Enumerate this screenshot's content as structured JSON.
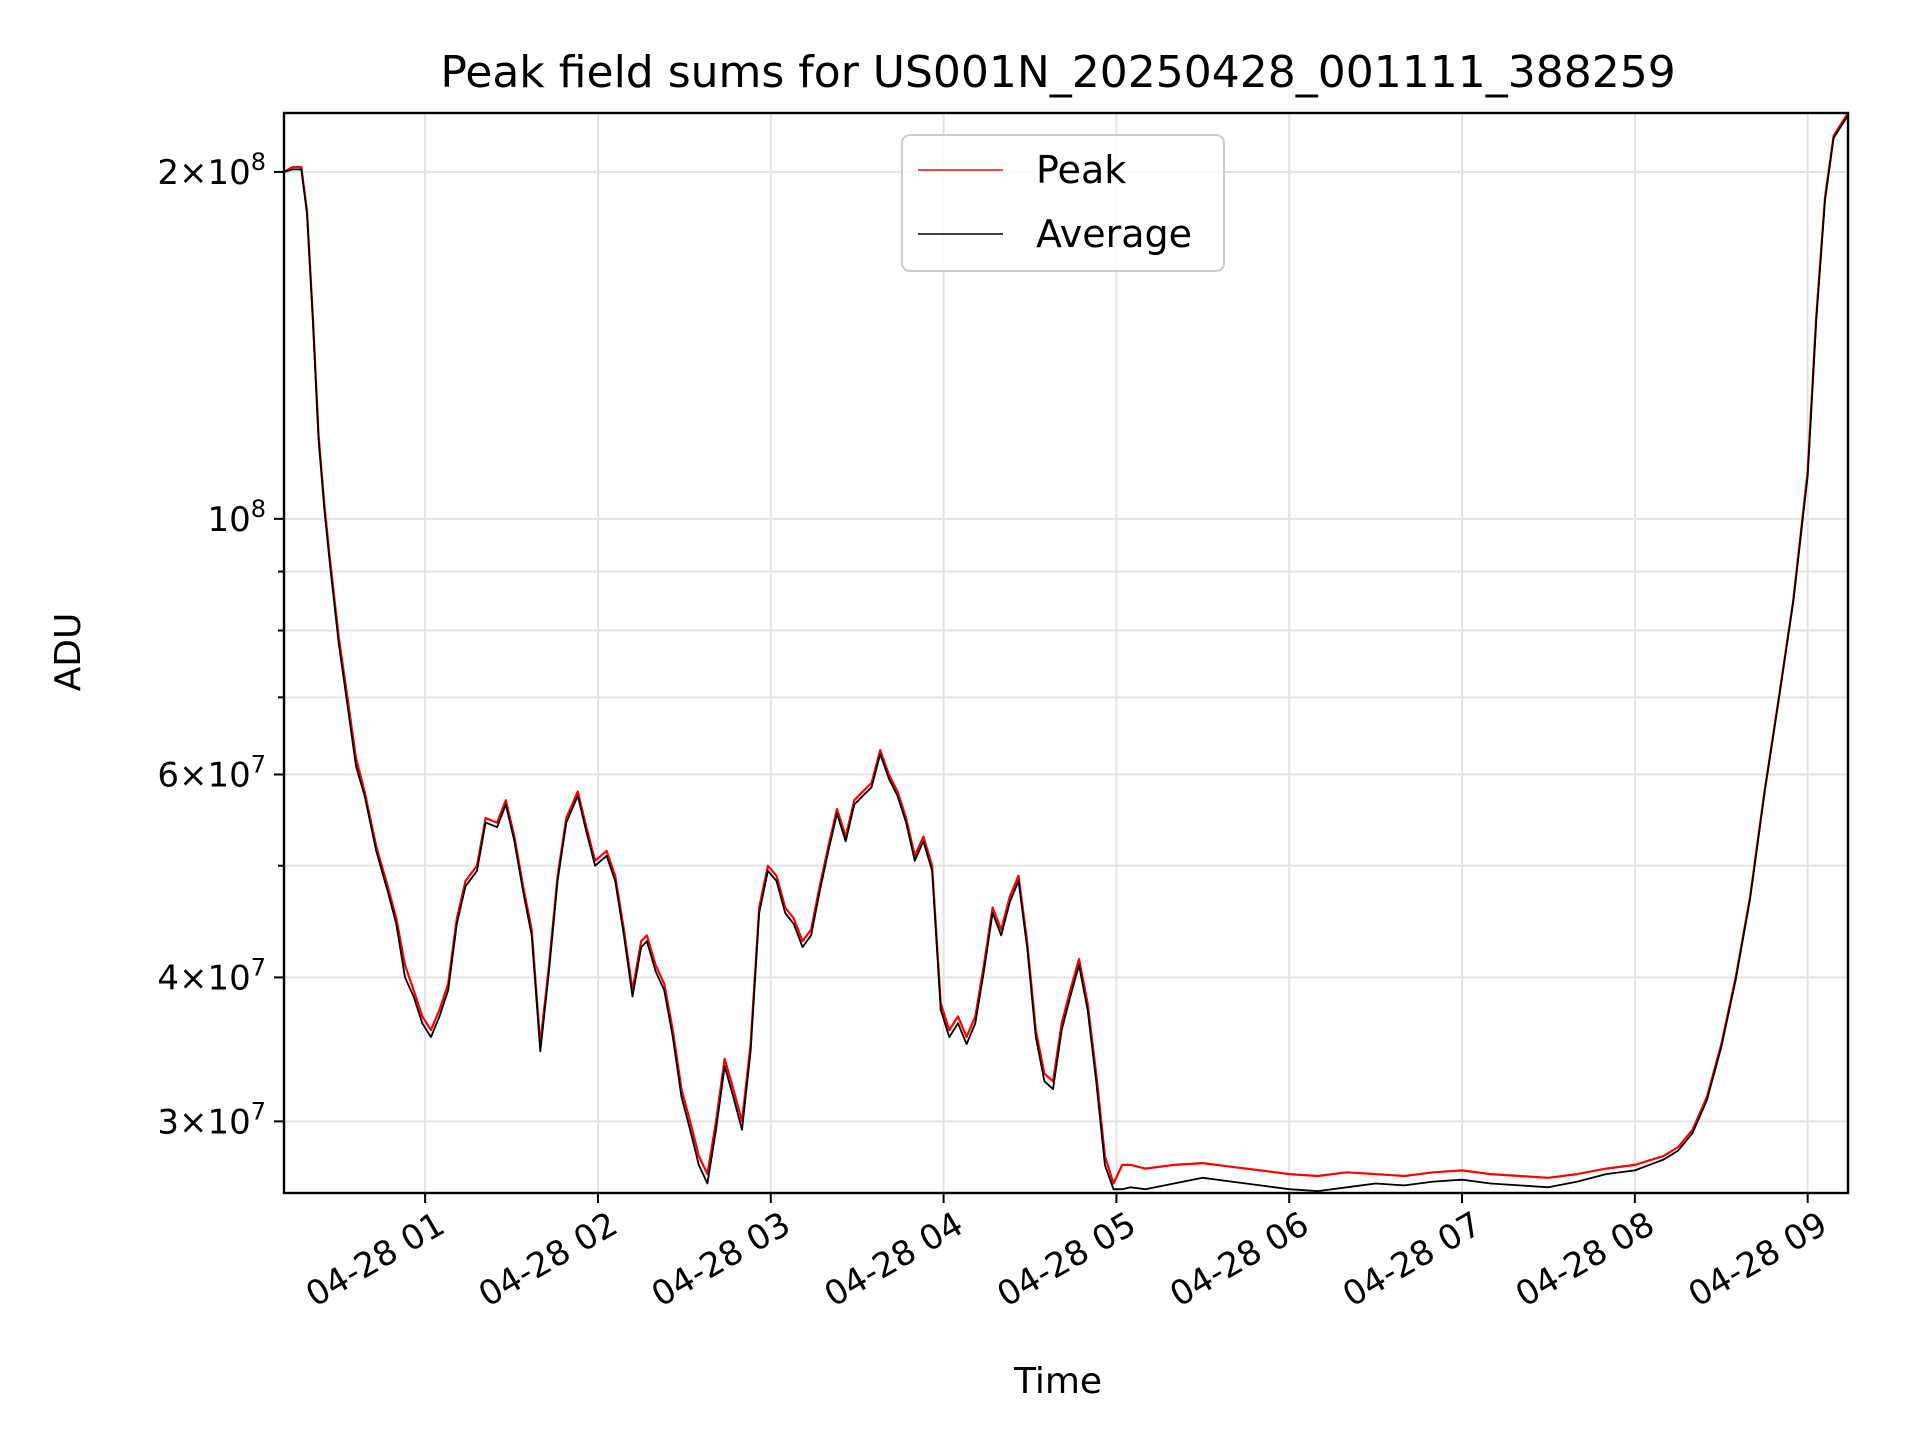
{
  "chart_data": {
    "type": "line",
    "title": "Peak field sums for US001N_20250428_001111_388259",
    "xlabel": "Time",
    "ylabel": "ADU",
    "y_scale": "log",
    "ylim": [
      26000000,
      225000000
    ],
    "xlim": [
      "04-28 00:11",
      "04-28 09:14"
    ],
    "grid": true,
    "legend_position": "upper-center",
    "x_ticks": [
      {
        "value": "04-28 01:00",
        "label": "04-28 01"
      },
      {
        "value": "04-28 02:00",
        "label": "04-28 02"
      },
      {
        "value": "04-28 03:00",
        "label": "04-28 03"
      },
      {
        "value": "04-28 04:00",
        "label": "04-28 04"
      },
      {
        "value": "04-28 05:00",
        "label": "04-28 05"
      },
      {
        "value": "04-28 06:00",
        "label": "04-28 06"
      },
      {
        "value": "04-28 07:00",
        "label": "04-28 07"
      },
      {
        "value": "04-28 08:00",
        "label": "04-28 08"
      },
      {
        "value": "04-28 09:00",
        "label": "04-28 09"
      }
    ],
    "y_ticks_major": [
      {
        "value": 100000000,
        "base": "10",
        "exp": "8",
        "mant": ""
      },
      {
        "value": 200000000,
        "base": "10",
        "exp": "8",
        "mant": "2"
      },
      {
        "value": 30000000,
        "base": "10",
        "exp": "7",
        "mant": "3"
      },
      {
        "value": 40000000,
        "base": "10",
        "exp": "7",
        "mant": "4"
      },
      {
        "value": 60000000,
        "base": "10",
        "exp": "7",
        "mant": "6"
      }
    ],
    "y_ticks_minor": [
      50000000,
      70000000,
      80000000,
      90000000
    ],
    "series": [
      {
        "name": "Peak",
        "color": "#ff0000",
        "x": [
          "04-28 00:11",
          "04-28 00:14",
          "04-28 00:17",
          "04-28 00:19",
          "04-28 00:21",
          "04-28 00:23",
          "04-28 00:25",
          "04-28 00:27",
          "04-28 00:30",
          "04-28 00:33",
          "04-28 00:36",
          "04-28 00:39",
          "04-28 00:43",
          "04-28 00:47",
          "04-28 00:50",
          "04-28 00:53",
          "04-28 00:56",
          "04-28 00:59",
          "04-28 01:02",
          "04-28 01:05",
          "04-28 01:08",
          "04-28 01:11",
          "04-28 01:14",
          "04-28 01:18",
          "04-28 01:21",
          "04-28 01:25",
          "04-28 01:28",
          "04-28 01:31",
          "04-28 01:34",
          "04-28 01:37",
          "04-28 01:40",
          "04-28 01:43",
          "04-28 01:46",
          "04-28 01:49",
          "04-28 01:53",
          "04-28 01:56",
          "04-28 01:59",
          "04-28 02:03",
          "04-28 02:06",
          "04-28 02:09",
          "04-28 02:12",
          "04-28 02:15",
          "04-28 02:17",
          "04-28 02:20",
          "04-28 02:23",
          "04-28 02:26",
          "04-28 02:29",
          "04-28 02:32",
          "04-28 02:35",
          "04-28 02:38",
          "04-28 02:41",
          "04-28 02:44",
          "04-28 02:47",
          "04-28 02:50",
          "04-28 02:53",
          "04-28 02:56",
          "04-28 02:59",
          "04-28 03:02",
          "04-28 03:05",
          "04-28 03:08",
          "04-28 03:11",
          "04-28 03:14",
          "04-28 03:17",
          "04-28 03:20",
          "04-28 03:23",
          "04-28 03:26",
          "04-28 03:29",
          "04-28 03:32",
          "04-28 03:35",
          "04-28 03:38",
          "04-28 03:41",
          "04-28 03:44",
          "04-28 03:47",
          "04-28 03:50",
          "04-28 03:53",
          "04-28 03:56",
          "04-28 03:59",
          "04-28 04:02",
          "04-28 04:05",
          "04-28 04:08",
          "04-28 04:11",
          "04-28 04:14",
          "04-28 04:17",
          "04-28 04:20",
          "04-28 04:23",
          "04-28 04:26",
          "04-28 04:29",
          "04-28 04:32",
          "04-28 04:35",
          "04-28 04:38",
          "04-28 04:41",
          "04-28 04:44",
          "04-28 04:47",
          "04-28 04:50",
          "04-28 04:53",
          "04-28 04:56",
          "04-28 04:59",
          "04-28 05:02",
          "04-28 05:05",
          "04-28 05:10",
          "04-28 05:20",
          "04-28 05:30",
          "04-28 05:40",
          "04-28 05:50",
          "04-28 06:00",
          "04-28 06:10",
          "04-28 06:20",
          "04-28 06:30",
          "04-28 06:40",
          "04-28 06:50",
          "04-28 07:00",
          "04-28 07:10",
          "04-28 07:20",
          "04-28 07:30",
          "04-28 07:40",
          "04-28 07:50",
          "04-28 08:00",
          "04-28 08:10",
          "04-28 08:15",
          "04-28 08:20",
          "04-28 08:25",
          "04-28 08:30",
          "04-28 08:35",
          "04-28 08:40",
          "04-28 08:45",
          "04-28 08:50",
          "04-28 08:55",
          "04-28 09:00",
          "04-28 09:03",
          "04-28 09:06",
          "04-28 09:09",
          "04-28 09:14"
        ],
        "y": [
          200000000,
          202000000,
          202000000,
          185000000,
          150000000,
          118000000,
          103000000,
          92000000,
          79000000,
          70000000,
          62000000,
          58000000,
          52000000,
          48000000,
          45000000,
          41000000,
          39000000,
          37000000,
          36000000,
          37500000,
          39500000,
          45000000,
          48500000,
          50000000,
          55000000,
          54500000,
          57000000,
          53000000,
          48000000,
          44000000,
          35000000,
          41000000,
          49000000,
          55000000,
          58000000,
          54000000,
          50500000,
          51500000,
          49000000,
          44000000,
          39000000,
          43000000,
          43500000,
          41000000,
          39500000,
          36000000,
          32000000,
          30000000,
          28000000,
          27000000,
          30000000,
          34000000,
          32000000,
          30000000,
          35000000,
          46000000,
          50000000,
          49000000,
          46000000,
          45000000,
          43000000,
          44000000,
          48000000,
          52000000,
          56000000,
          53000000,
          57000000,
          58000000,
          59000000,
          63000000,
          60000000,
          58000000,
          55000000,
          51000000,
          53000000,
          50000000,
          38000000,
          36000000,
          37000000,
          35500000,
          37000000,
          41000000,
          46000000,
          44000000,
          47000000,
          49000000,
          43000000,
          36000000,
          33000000,
          32500000,
          36500000,
          39000000,
          41500000,
          38000000,
          33000000,
          28000000,
          26500000,
          27500000,
          27500000,
          27300000,
          27500000,
          27600000,
          27400000,
          27200000,
          27000000,
          26900000,
          27100000,
          27000000,
          26900000,
          27100000,
          27200000,
          27000000,
          26900000,
          26800000,
          27000000,
          27300000,
          27500000,
          28000000,
          28500000,
          29500000,
          31500000,
          35000000,
          40000000,
          47000000,
          58000000,
          70000000,
          85000000,
          110000000,
          150000000,
          190000000,
          215000000,
          225000000
        ]
      },
      {
        "name": "Average",
        "color": "#000000",
        "x": [
          "04-28 00:11",
          "04-28 00:14",
          "04-28 00:17",
          "04-28 00:19",
          "04-28 00:21",
          "04-28 00:23",
          "04-28 00:25",
          "04-28 00:27",
          "04-28 00:30",
          "04-28 00:33",
          "04-28 00:36",
          "04-28 00:39",
          "04-28 00:43",
          "04-28 00:47",
          "04-28 00:50",
          "04-28 00:53",
          "04-28 00:56",
          "04-28 00:59",
          "04-28 01:02",
          "04-28 01:05",
          "04-28 01:08",
          "04-28 01:11",
          "04-28 01:14",
          "04-28 01:18",
          "04-28 01:21",
          "04-28 01:25",
          "04-28 01:28",
          "04-28 01:31",
          "04-28 01:34",
          "04-28 01:37",
          "04-28 01:40",
          "04-28 01:43",
          "04-28 01:46",
          "04-28 01:49",
          "04-28 01:53",
          "04-28 01:56",
          "04-28 01:59",
          "04-28 02:03",
          "04-28 02:06",
          "04-28 02:09",
          "04-28 02:12",
          "04-28 02:15",
          "04-28 02:17",
          "04-28 02:20",
          "04-28 02:23",
          "04-28 02:26",
          "04-28 02:29",
          "04-28 02:32",
          "04-28 02:35",
          "04-28 02:38",
          "04-28 02:41",
          "04-28 02:44",
          "04-28 02:47",
          "04-28 02:50",
          "04-28 02:53",
          "04-28 02:56",
          "04-28 02:59",
          "04-28 03:02",
          "04-28 03:05",
          "04-28 03:08",
          "04-28 03:11",
          "04-28 03:14",
          "04-28 03:17",
          "04-28 03:20",
          "04-28 03:23",
          "04-28 03:26",
          "04-28 03:29",
          "04-28 03:32",
          "04-28 03:35",
          "04-28 03:38",
          "04-28 03:41",
          "04-28 03:44",
          "04-28 03:47",
          "04-28 03:50",
          "04-28 03:53",
          "04-28 03:56",
          "04-28 03:59",
          "04-28 04:02",
          "04-28 04:05",
          "04-28 04:08",
          "04-28 04:11",
          "04-28 04:14",
          "04-28 04:17",
          "04-28 04:20",
          "04-28 04:23",
          "04-28 04:26",
          "04-28 04:29",
          "04-28 04:32",
          "04-28 04:35",
          "04-28 04:38",
          "04-28 04:41",
          "04-28 04:44",
          "04-28 04:47",
          "04-28 04:50",
          "04-28 04:53",
          "04-28 04:56",
          "04-28 04:59",
          "04-28 05:02",
          "04-28 05:05",
          "04-28 05:10",
          "04-28 05:20",
          "04-28 05:30",
          "04-28 05:40",
          "04-28 05:50",
          "04-28 06:00",
          "04-28 06:10",
          "04-28 06:20",
          "04-28 06:30",
          "04-28 06:40",
          "04-28 06:50",
          "04-28 07:00",
          "04-28 07:10",
          "04-28 07:20",
          "04-28 07:30",
          "04-28 07:40",
          "04-28 07:50",
          "04-28 08:00",
          "04-28 08:10",
          "04-28 08:15",
          "04-28 08:20",
          "04-28 08:25",
          "04-28 08:30",
          "04-28 08:35",
          "04-28 08:40",
          "04-28 08:45",
          "04-28 08:50",
          "04-28 08:55",
          "04-28 09:00",
          "04-28 09:03",
          "04-28 09:06",
          "04-28 09:09",
          "04-28 09:14"
        ],
        "y": [
          200000000,
          201000000,
          201000000,
          184000000,
          149000000,
          117000000,
          102000000,
          91000000,
          78000000,
          69000000,
          61000000,
          57500000,
          51500000,
          47500000,
          44500000,
          40000000,
          38500000,
          36500000,
          35500000,
          37000000,
          39000000,
          44500000,
          48000000,
          49500000,
          54500000,
          54000000,
          56500000,
          52500000,
          47500000,
          43500000,
          34500000,
          40500000,
          48500000,
          54500000,
          57500000,
          53500000,
          50000000,
          51000000,
          48500000,
          43500000,
          38500000,
          42500000,
          43000000,
          40500000,
          39000000,
          35500000,
          31500000,
          29500000,
          27500000,
          26500000,
          29500000,
          33500000,
          31500000,
          29500000,
          34500000,
          45500000,
          49500000,
          48500000,
          45500000,
          44500000,
          42500000,
          43500000,
          47500000,
          51500000,
          55500000,
          52500000,
          56500000,
          57500000,
          58500000,
          62500000,
          59500000,
          57500000,
          54500000,
          50500000,
          52500000,
          49500000,
          37500000,
          35500000,
          36500000,
          35000000,
          36500000,
          40500000,
          45500000,
          43500000,
          46500000,
          48500000,
          42500000,
          35500000,
          32500000,
          32000000,
          36000000,
          38500000,
          41000000,
          37500000,
          32500000,
          27500000,
          26200000,
          26200000,
          26300000,
          26200000,
          26500000,
          26800000,
          26600000,
          26400000,
          26200000,
          26100000,
          26300000,
          26500000,
          26400000,
          26600000,
          26700000,
          26500000,
          26400000,
          26300000,
          26600000,
          27000000,
          27200000,
          27800000,
          28300000,
          29300000,
          31300000,
          34800000,
          39800000,
          46800000,
          57800000,
          69800000,
          84800000,
          109000000,
          149000000,
          189000000,
          214000000,
          224000000
        ]
      }
    ]
  }
}
